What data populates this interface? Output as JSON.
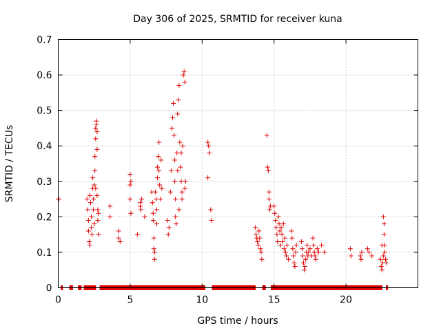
{
  "chart_data": {
    "type": "scatter",
    "title": "Day 306 of 2025, SRMTID for receiver kuna",
    "xlabel": "GPS time / hours",
    "ylabel": "SRMTID / TECUs",
    "xlim": [
      0,
      25
    ],
    "ylim": [
      0,
      0.7
    ],
    "xticks": [
      0,
      5,
      10,
      15,
      20
    ],
    "yticks": [
      0,
      0.1,
      0.2,
      0.3,
      0.4,
      0.5,
      0.6,
      0.7
    ],
    "xtick_labels": [
      "0",
      "5",
      "10",
      "15",
      "20"
    ],
    "ytick_labels": [
      "0",
      "0.1",
      "0.2",
      "0.3",
      "0.4",
      "0.5",
      "0.6",
      "0.7"
    ],
    "grid": true,
    "legend": "none",
    "marker": "+",
    "color": "#e00000",
    "series": [
      {
        "points": [
          [
            0.0,
            0.25
          ],
          [
            0.05,
            0.25
          ],
          [
            2.0,
            0.25
          ],
          [
            2.05,
            0.22
          ],
          [
            2.1,
            0.19
          ],
          [
            2.1,
            0.16
          ],
          [
            2.15,
            0.13
          ],
          [
            2.2,
            0.12
          ],
          [
            2.2,
            0.26
          ],
          [
            2.25,
            0.24
          ],
          [
            2.3,
            0.2
          ],
          [
            2.3,
            0.17
          ],
          [
            2.35,
            0.15
          ],
          [
            2.4,
            0.28
          ],
          [
            2.4,
            0.31
          ],
          [
            2.45,
            0.25
          ],
          [
            2.45,
            0.22
          ],
          [
            2.5,
            0.29
          ],
          [
            2.5,
            0.18
          ],
          [
            2.55,
            0.33
          ],
          [
            2.55,
            0.37
          ],
          [
            2.6,
            0.42
          ],
          [
            2.6,
            0.45
          ],
          [
            2.65,
            0.47
          ],
          [
            2.65,
            0.46
          ],
          [
            2.7,
            0.44
          ],
          [
            2.7,
            0.39
          ],
          [
            2.75,
            0.22
          ],
          [
            2.75,
            0.19
          ],
          [
            2.8,
            0.15
          ],
          [
            2.8,
            0.21
          ],
          [
            2.7,
            0.26
          ],
          [
            2.6,
            0.28
          ],
          [
            3.6,
            0.23
          ],
          [
            3.6,
            0.2
          ],
          [
            4.2,
            0.16
          ],
          [
            4.2,
            0.14
          ],
          [
            4.3,
            0.13
          ],
          [
            5.0,
            0.32
          ],
          [
            5.0,
            0.29
          ],
          [
            5.0,
            0.25
          ],
          [
            5.05,
            0.21
          ],
          [
            5.05,
            0.3
          ],
          [
            5.5,
            0.15
          ],
          [
            5.7,
            0.24
          ],
          [
            5.7,
            0.23
          ],
          [
            5.75,
            0.22
          ],
          [
            5.8,
            0.25
          ],
          [
            6.0,
            0.2
          ],
          [
            6.5,
            0.27
          ],
          [
            6.55,
            0.24
          ],
          [
            6.6,
            0.21
          ],
          [
            6.6,
            0.19
          ],
          [
            6.65,
            0.14
          ],
          [
            6.65,
            0.11
          ],
          [
            6.7,
            0.08
          ],
          [
            6.7,
            0.1
          ],
          [
            6.75,
            0.27
          ],
          [
            6.8,
            0.25
          ],
          [
            6.85,
            0.22
          ],
          [
            6.85,
            0.18
          ],
          [
            6.9,
            0.31
          ],
          [
            6.9,
            0.34
          ],
          [
            6.95,
            0.37
          ],
          [
            7.0,
            0.41
          ],
          [
            7.0,
            0.33
          ],
          [
            7.05,
            0.29
          ],
          [
            7.1,
            0.25
          ],
          [
            7.15,
            0.36
          ],
          [
            7.2,
            0.28
          ],
          [
            7.6,
            0.19
          ],
          [
            7.65,
            0.15
          ],
          [
            7.7,
            0.17
          ],
          [
            7.8,
            0.27
          ],
          [
            7.85,
            0.33
          ],
          [
            7.9,
            0.45
          ],
          [
            7.95,
            0.48
          ],
          [
            8.0,
            0.52
          ],
          [
            8.05,
            0.43
          ],
          [
            8.1,
            0.36
          ],
          [
            8.1,
            0.3
          ],
          [
            8.15,
            0.25
          ],
          [
            8.15,
            0.2
          ],
          [
            8.2,
            0.18
          ],
          [
            8.25,
            0.38
          ],
          [
            8.3,
            0.49
          ],
          [
            8.35,
            0.53
          ],
          [
            8.4,
            0.57
          ],
          [
            8.45,
            0.41
          ],
          [
            8.5,
            0.34
          ],
          [
            8.55,
            0.3
          ],
          [
            8.6,
            0.27
          ],
          [
            8.6,
            0.25
          ],
          [
            8.65,
            0.4
          ],
          [
            8.7,
            0.6
          ],
          [
            8.75,
            0.61
          ],
          [
            8.8,
            0.58
          ],
          [
            8.8,
            0.28
          ],
          [
            8.85,
            0.3
          ],
          [
            8.4,
            0.22
          ],
          [
            8.3,
            0.33
          ],
          [
            8.55,
            0.38
          ],
          [
            10.4,
            0.41
          ],
          [
            10.45,
            0.4
          ],
          [
            10.5,
            0.38
          ],
          [
            10.4,
            0.31
          ],
          [
            10.6,
            0.22
          ],
          [
            10.65,
            0.19
          ],
          [
            13.7,
            0.17
          ],
          [
            13.75,
            0.15
          ],
          [
            13.8,
            0.14
          ],
          [
            13.85,
            0.13
          ],
          [
            13.9,
            0.12
          ],
          [
            13.95,
            0.16
          ],
          [
            14.0,
            0.14
          ],
          [
            14.05,
            0.11
          ],
          [
            14.1,
            0.1
          ],
          [
            14.15,
            0.08
          ],
          [
            14.5,
            0.43
          ],
          [
            14.55,
            0.34
          ],
          [
            14.6,
            0.33
          ],
          [
            14.65,
            0.27
          ],
          [
            14.65,
            0.25
          ],
          [
            14.7,
            0.22
          ],
          [
            14.75,
            0.23
          ],
          [
            15.0,
            0.23
          ],
          [
            15.05,
            0.21
          ],
          [
            15.1,
            0.19
          ],
          [
            15.15,
            0.17
          ],
          [
            15.2,
            0.15
          ],
          [
            15.25,
            0.13
          ],
          [
            15.3,
            0.2
          ],
          [
            15.35,
            0.18
          ],
          [
            15.4,
            0.16
          ],
          [
            15.45,
            0.12
          ],
          [
            15.5,
            0.17
          ],
          [
            15.55,
            0.15
          ],
          [
            15.6,
            0.13
          ],
          [
            15.65,
            0.18
          ],
          [
            15.7,
            0.11
          ],
          [
            15.75,
            0.14
          ],
          [
            15.8,
            0.1
          ],
          [
            15.85,
            0.09
          ],
          [
            15.9,
            0.12
          ],
          [
            16.0,
            0.08
          ],
          [
            16.2,
            0.16
          ],
          [
            16.25,
            0.14
          ],
          [
            16.3,
            0.11
          ],
          [
            16.35,
            0.09
          ],
          [
            16.4,
            0.07
          ],
          [
            16.45,
            0.06
          ],
          [
            16.5,
            0.1
          ],
          [
            16.55,
            0.12
          ],
          [
            16.9,
            0.13
          ],
          [
            16.95,
            0.11
          ],
          [
            17.0,
            0.09
          ],
          [
            17.05,
            0.07
          ],
          [
            17.1,
            0.05
          ],
          [
            17.15,
            0.06
          ],
          [
            17.2,
            0.08
          ],
          [
            17.25,
            0.1
          ],
          [
            17.3,
            0.12
          ],
          [
            17.35,
            0.09
          ],
          [
            17.4,
            0.1
          ],
          [
            17.5,
            0.11
          ],
          [
            17.6,
            0.09
          ],
          [
            17.7,
            0.14
          ],
          [
            17.75,
            0.12
          ],
          [
            17.8,
            0.1
          ],
          [
            17.85,
            0.09
          ],
          [
            17.9,
            0.08
          ],
          [
            18.0,
            0.11
          ],
          [
            18.1,
            0.1
          ],
          [
            18.3,
            0.12
          ],
          [
            18.5,
            0.1
          ],
          [
            20.3,
            0.11
          ],
          [
            20.35,
            0.09
          ],
          [
            21.0,
            0.09
          ],
          [
            21.05,
            0.08
          ],
          [
            21.1,
            0.1
          ],
          [
            21.5,
            0.11
          ],
          [
            21.6,
            0.1
          ],
          [
            21.8,
            0.09
          ],
          [
            22.4,
            0.08
          ],
          [
            22.45,
            0.06
          ],
          [
            22.5,
            0.05
          ],
          [
            22.55,
            0.07
          ],
          [
            22.6,
            0.09
          ],
          [
            22.6,
            0.2
          ],
          [
            22.65,
            0.18
          ],
          [
            22.65,
            0.15
          ],
          [
            22.7,
            0.12
          ],
          [
            22.7,
            0.1
          ],
          [
            22.75,
            0.08
          ],
          [
            22.8,
            0.07
          ],
          [
            22.5,
            0.12
          ]
        ],
        "zero_ranges": [
          [
            0.2,
            0.3
          ],
          [
            0.8,
            1.0
          ],
          [
            1.4,
            1.6
          ],
          [
            1.8,
            2.6
          ],
          [
            2.9,
            10.2
          ],
          [
            10.7,
            13.7
          ],
          [
            14.2,
            14.4
          ],
          [
            14.8,
            22.5
          ],
          [
            22.8,
            22.9
          ]
        ]
      }
    ]
  }
}
